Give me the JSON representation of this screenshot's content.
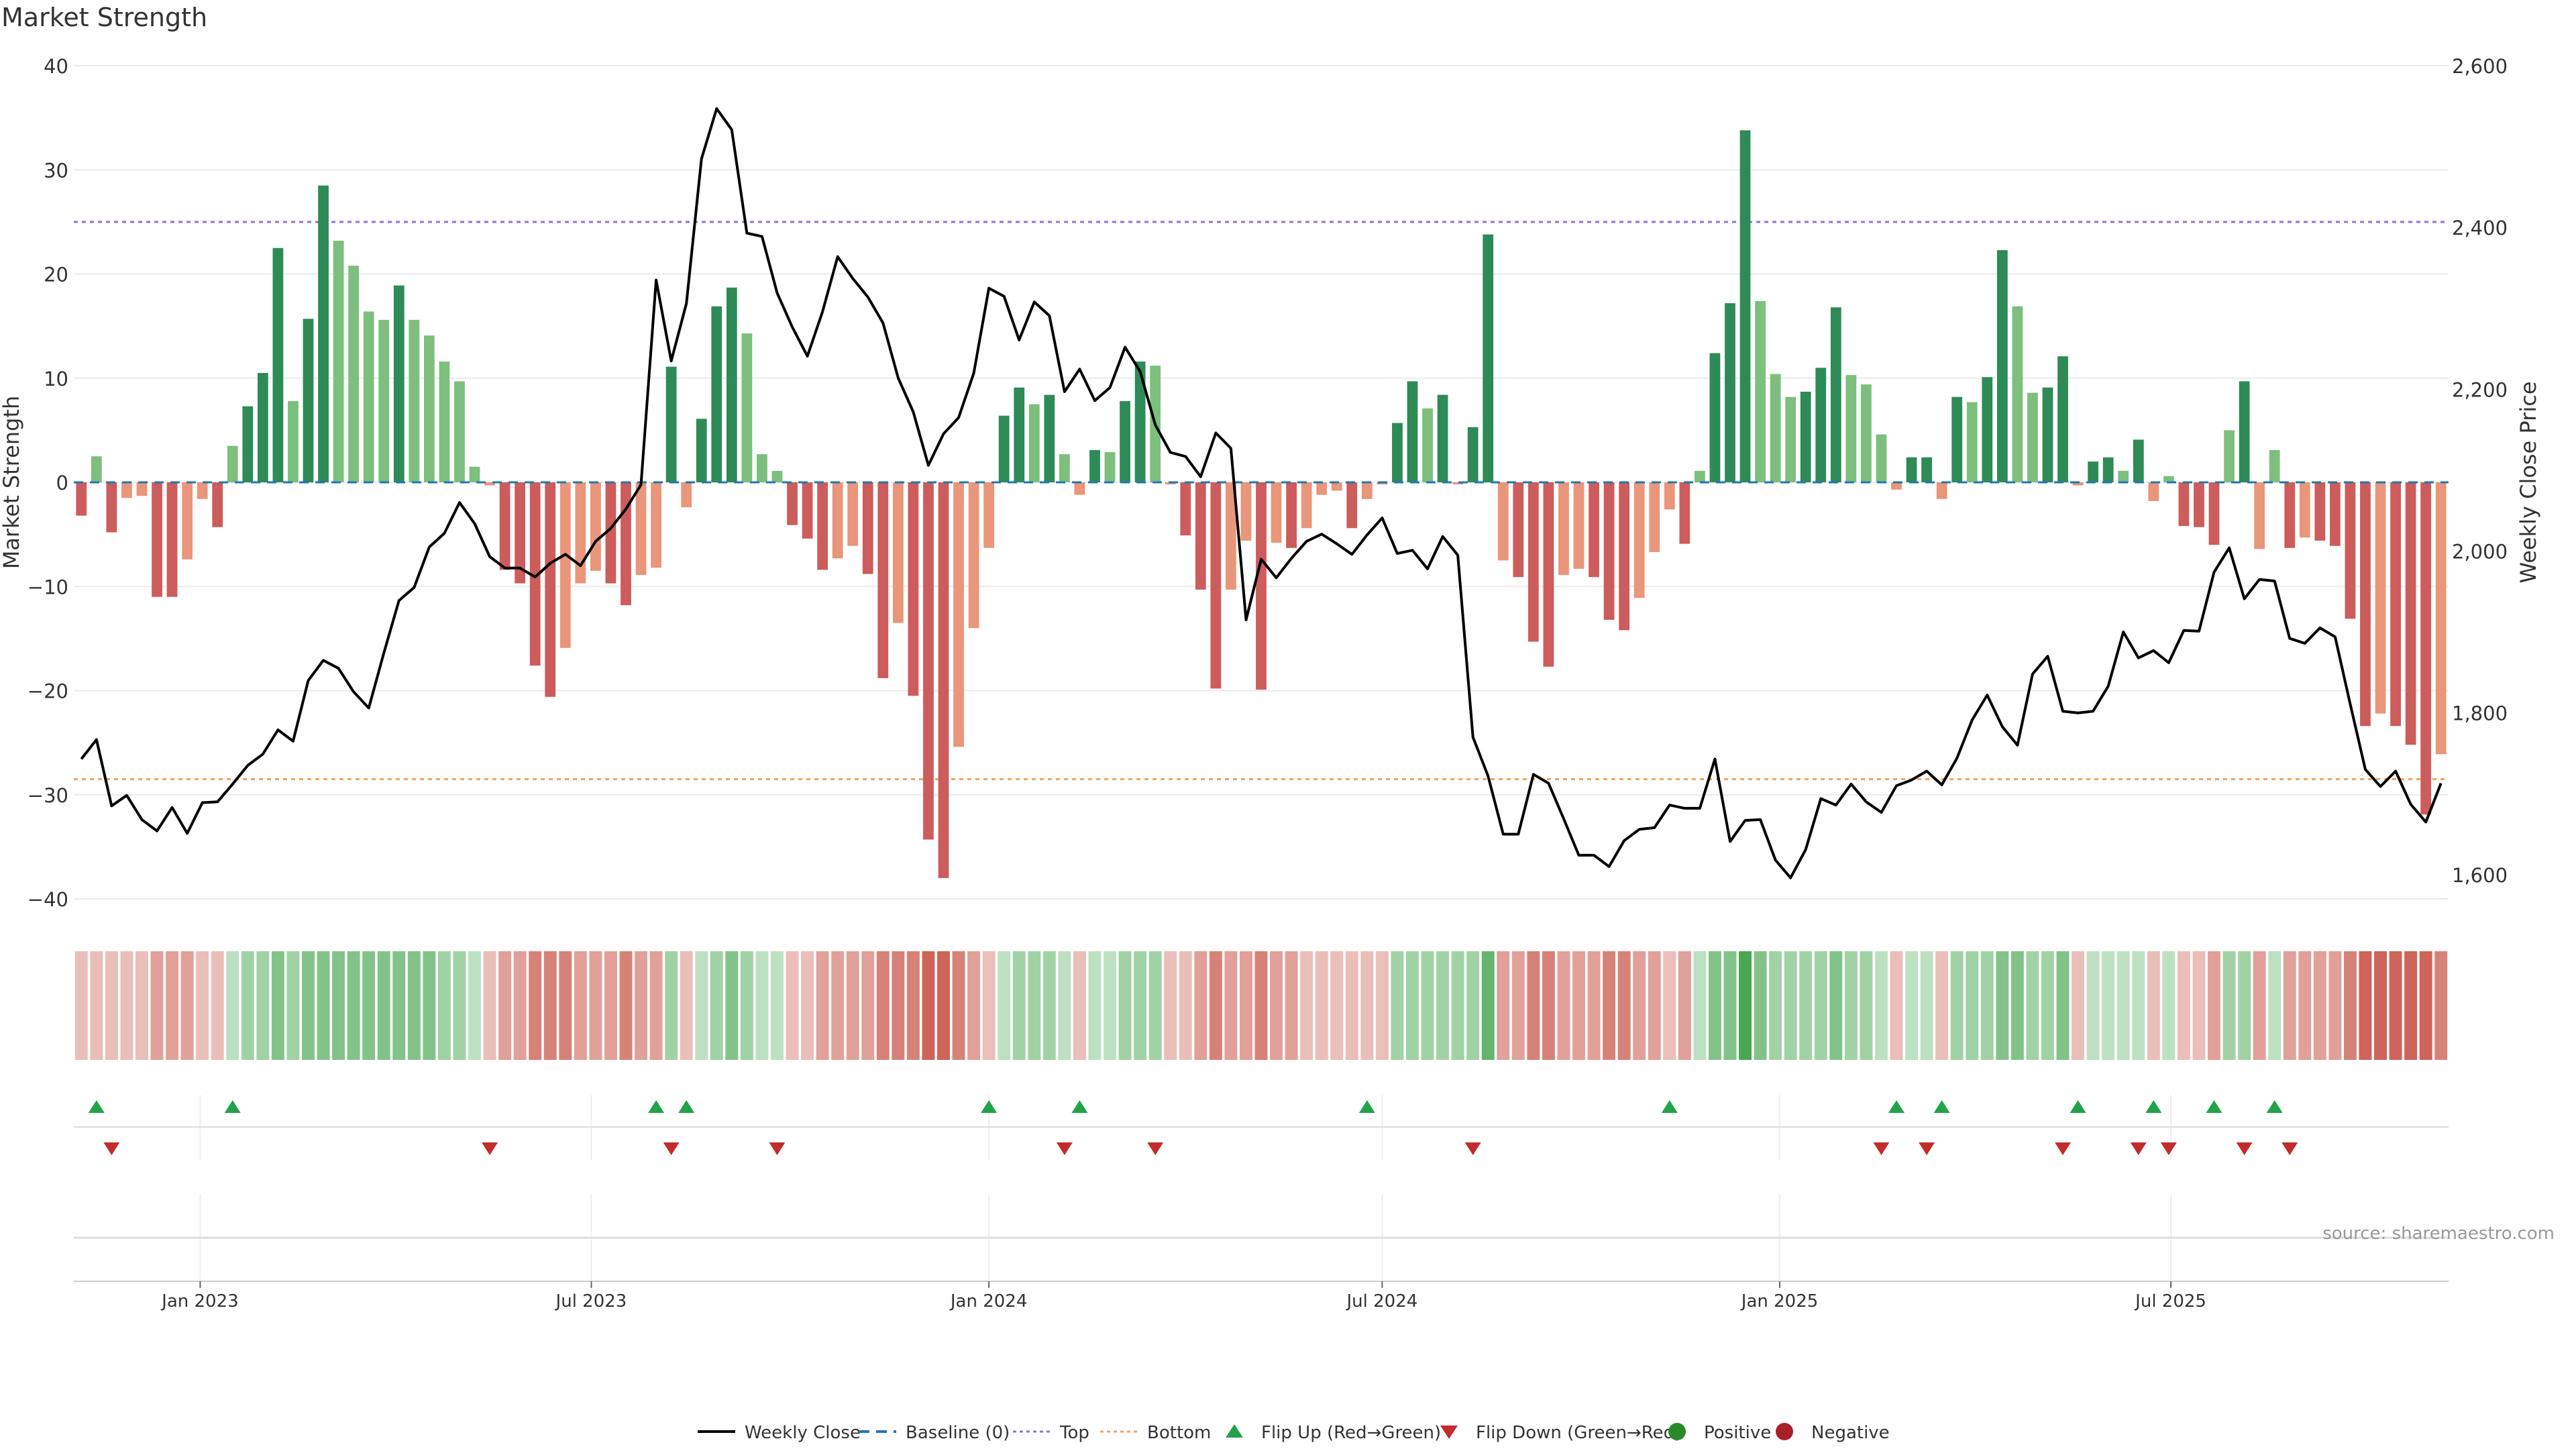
{
  "title": "Market Strength",
  "source": "source: sharemaestro.com",
  "chart_data": {
    "type": "bar",
    "ylabel_left": "Market Strength",
    "ylabel_right": "Weekly Close Price",
    "ylim_left": [
      -40,
      40
    ],
    "yticks_left": [
      "40",
      "30",
      "20",
      "10",
      "0",
      "−10",
      "−20",
      "−30",
      "−40"
    ],
    "ylim_right": [
      1570,
      2600
    ],
    "yticks_right": [
      "2,600",
      "2,400",
      "2,200",
      "2,000",
      "1,800",
      "1,600"
    ],
    "x_tick_labels": [
      "Jan 2023",
      "Jul 2023",
      "Jan 2024",
      "Jul 2024",
      "Jan 2025",
      "Jul 2025"
    ],
    "top_line": 25,
    "bottom_line": -28.5,
    "grid": true,
    "legend_position": "bottom-center",
    "colors": {
      "strong_green": "#2e8b57",
      "light_green": "#7dbf7d",
      "strong_red": "#cd5c5c",
      "light_red": "#e9967a",
      "line": "#000000",
      "top": "#9370db",
      "bottom": "#f4a460",
      "baseline": "#1f77b4",
      "flip_up": "#22a34a",
      "flip_down": "#c42b2b"
    },
    "strength_values": [
      -3.2,
      2.5,
      -4.8,
      -1.5,
      -1.3,
      -11,
      -11,
      -7.4,
      -1.6,
      -4.3,
      3.5,
      7.3,
      10.5,
      22.5,
      7.8,
      15.7,
      28.5,
      23.2,
      20.8,
      16.4,
      15.6,
      18.9,
      15.6,
      14.1,
      11.6,
      9.7,
      1.5,
      -0.3,
      -8.4,
      -9.7,
      -17.6,
      -20.6,
      -15.9,
      -9.7,
      -8.5,
      -9.7,
      -11.8,
      -8.9,
      -8.2,
      11.1,
      -2.4,
      6.1,
      16.9,
      18.7,
      14.3,
      2.7,
      1.1,
      -4.1,
      -5.4,
      -8.4,
      -7.3,
      -6.1,
      -8.8,
      -18.8,
      -13.5,
      -20.5,
      -34.3,
      -38,
      -25.4,
      -14,
      -6.3,
      6.4,
      9.1,
      7.5,
      8.4,
      2.7,
      -1.2,
      3.1,
      2.9,
      7.8,
      11.6,
      11.2,
      -0.2,
      -5.1,
      -10.3,
      -19.8,
      -10.3,
      -5.6,
      -19.9,
      -5.8,
      -6.3,
      -4.4,
      -1.2,
      -0.8,
      -4.4,
      -1.6,
      -0.2,
      5.7,
      9.7,
      7.1,
      8.4,
      -0.2,
      5.3,
      23.8,
      -7.5,
      -9.1,
      -15.3,
      -17.7,
      -8.9,
      -8.3,
      -9.1,
      -13.2,
      -14.2,
      -11.1,
      -6.7,
      -2.6,
      -5.9,
      1.1,
      12.4,
      17.2,
      33.8,
      17.4,
      10.4,
      8.2,
      8.7,
      11,
      16.8,
      10.3,
      9.4,
      4.6,
      -0.7,
      2.4,
      2.4,
      -1.6,
      8.2,
      7.7,
      10.1,
      22.3,
      16.9,
      8.6,
      9.1,
      12.1,
      -0.3,
      2,
      2.4,
      1.1,
      4.1,
      -1.8,
      0.6,
      -4.2,
      -4.3,
      -6,
      5,
      9.7,
      -6.4,
      3.1,
      -6.3,
      -5.3,
      -5.6,
      -6.1,
      -13.1,
      -23.4,
      -22.2,
      -23.4,
      -25.2,
      -31.9,
      -26.1
    ],
    "close_prices": [
      1743,
      1767,
      1685,
      1698,
      1668,
      1654,
      1683,
      1651,
      1689,
      1690,
      1712,
      1735,
      1749,
      1779,
      1765,
      1840,
      1865,
      1855,
      1826,
      1806,
      1874,
      1939,
      1955,
      2005,
      2022,
      2060,
      2034,
      1993,
      1979,
      1979,
      1968,
      1985,
      1996,
      1982,
      2012,
      2028,
      2052,
      2082,
      2335,
      2235,
      2306,
      2485,
      2547,
      2521,
      2393,
      2389,
      2319,
      2277,
      2241,
      2296,
      2364,
      2337,
      2314,
      2282,
      2214,
      2172,
      2106,
      2145,
      2165,
      2220,
      2325,
      2315,
      2261,
      2308,
      2291,
      2197,
      2225,
      2186,
      2202,
      2252,
      2222,
      2156,
      2122,
      2117,
      2092,
      2146,
      2127,
      1915,
      1990,
      1967,
      1991,
      2012,
      2021,
      2009,
      1996,
      2020,
      2041,
      1997,
      2001,
      1978,
      2018,
      1995,
      1770,
      1722,
      1650,
      1650,
      1724,
      1713,
      1669,
      1624,
      1624,
      1610,
      1642,
      1656,
      1658,
      1686,
      1682,
      1682,
      1743,
      1641,
      1667,
      1668,
      1618,
      1596,
      1631,
      1694,
      1686,
      1712,
      1690,
      1677,
      1710,
      1717,
      1728,
      1711,
      1744,
      1791,
      1822,
      1783,
      1760,
      1848,
      1870,
      1802,
      1800,
      1802,
      1833,
      1900,
      1868,
      1877,
      1862,
      1902,
      1901,
      1974,
      2004,
      1941,
      1965,
      1963,
      1892,
      1886,
      1905,
      1894,
      1811,
      1730,
      1709,
      1728,
      1687,
      1665,
      1713
    ],
    "signal_values": [
      -1,
      -1,
      -1,
      -1,
      -1,
      -2,
      -2,
      -2,
      -1,
      -1,
      1,
      2,
      2,
      3,
      2,
      3,
      3,
      3,
      3,
      3,
      3,
      3,
      3,
      3,
      2,
      2,
      1,
      -1,
      -2,
      -2,
      -3,
      -3,
      -3,
      -2,
      -2,
      -2,
      -3,
      -2,
      -2,
      2,
      -1,
      1,
      2,
      3,
      2,
      1,
      1,
      -1,
      -1,
      -2,
      -2,
      -2,
      -2,
      -3,
      -3,
      -3,
      -4,
      -4,
      -3,
      -2,
      -1,
      1,
      2,
      2,
      2,
      1,
      -1,
      1,
      1,
      2,
      2,
      2,
      -1,
      -1,
      -2,
      -3,
      -2,
      -2,
      -3,
      -2,
      -2,
      -1,
      -1,
      -1,
      -1,
      -1,
      -1,
      2,
      2,
      2,
      2,
      2,
      2,
      4,
      -2,
      -2,
      -3,
      -3,
      -2,
      -2,
      -2,
      -3,
      -3,
      -2,
      -2,
      -1,
      -2,
      1,
      3,
      3,
      5,
      3,
      2,
      2,
      2,
      2,
      3,
      2,
      2,
      1,
      -1,
      1,
      1,
      -1,
      2,
      2,
      2,
      3,
      3,
      2,
      2,
      3,
      -1,
      1,
      1,
      1,
      1,
      -1,
      1,
      -1,
      -1,
      -2,
      2,
      2,
      -2,
      1,
      -2,
      -2,
      -2,
      -2,
      -3,
      -4,
      -4,
      -4,
      -4,
      -4,
      -3
    ],
    "flip_up_weeks": [
      1,
      10,
      38,
      40,
      60,
      66,
      85,
      105,
      120,
      123,
      132,
      137,
      141,
      145
    ],
    "flip_down_weeks": [
      2,
      27,
      39,
      46,
      65,
      71,
      92,
      119,
      122,
      131,
      136,
      138,
      143,
      146
    ],
    "legend": [
      "Weekly Close",
      "Baseline (0)",
      "Top",
      "Bottom",
      "Flip Up (Red→Green)",
      "Flip Down (Green→Red)",
      "Positive",
      "Negative"
    ]
  }
}
